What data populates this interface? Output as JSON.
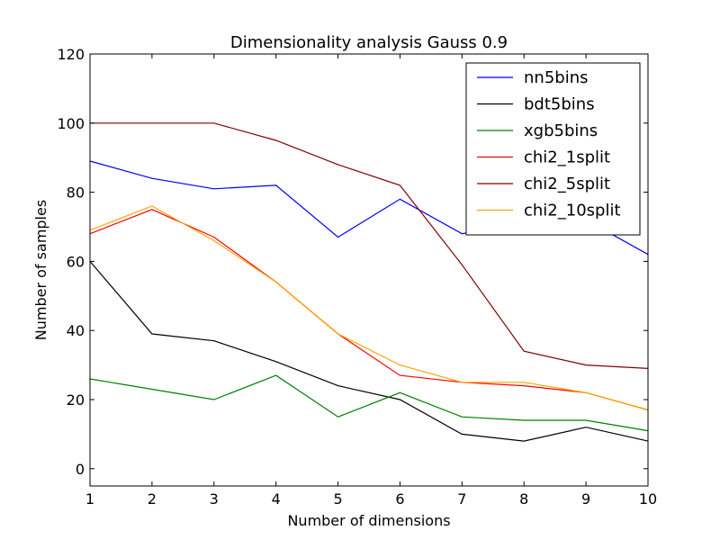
{
  "chart_data": {
    "type": "line",
    "title": "Dimensionality analysis Gauss 0.9",
    "xlabel": "Number of dimensions",
    "ylabel": "Number of samples",
    "xlim": [
      1,
      10
    ],
    "ylim": [
      -5,
      120
    ],
    "xticks": [
      1,
      2,
      3,
      4,
      5,
      6,
      7,
      8,
      9,
      10
    ],
    "yticks": [
      0,
      20,
      40,
      60,
      80,
      100,
      120
    ],
    "grid": false,
    "legend_position": "top-right",
    "x": [
      1,
      2,
      3,
      4,
      5,
      6,
      7,
      8,
      9,
      10
    ],
    "series": [
      {
        "name": "nn5bins",
        "color": "#0000ff",
        "values": [
          89,
          84,
          81,
          82,
          67,
          78,
          68,
          71,
          72,
          62
        ]
      },
      {
        "name": "bdt5bins",
        "color": "#000000",
        "values": [
          60,
          39,
          37,
          31,
          24,
          20,
          10,
          8,
          12,
          8
        ]
      },
      {
        "name": "xgb5bins",
        "color": "#008000",
        "values": [
          26,
          23,
          20,
          27,
          15,
          22,
          15,
          14,
          14,
          11
        ]
      },
      {
        "name": "chi2_1split",
        "color": "#ff0000",
        "values": [
          68,
          75,
          67,
          54,
          39,
          27,
          25,
          24,
          22,
          17
        ]
      },
      {
        "name": "chi2_5split",
        "color": "#800000",
        "values": [
          100,
          100,
          100,
          95,
          88,
          82,
          59,
          34,
          30,
          29
        ]
      },
      {
        "name": "chi2_10split",
        "color": "#ffa500",
        "values": [
          69,
          76,
          66,
          54,
          39,
          30,
          25,
          25,
          22,
          17
        ]
      }
    ]
  }
}
